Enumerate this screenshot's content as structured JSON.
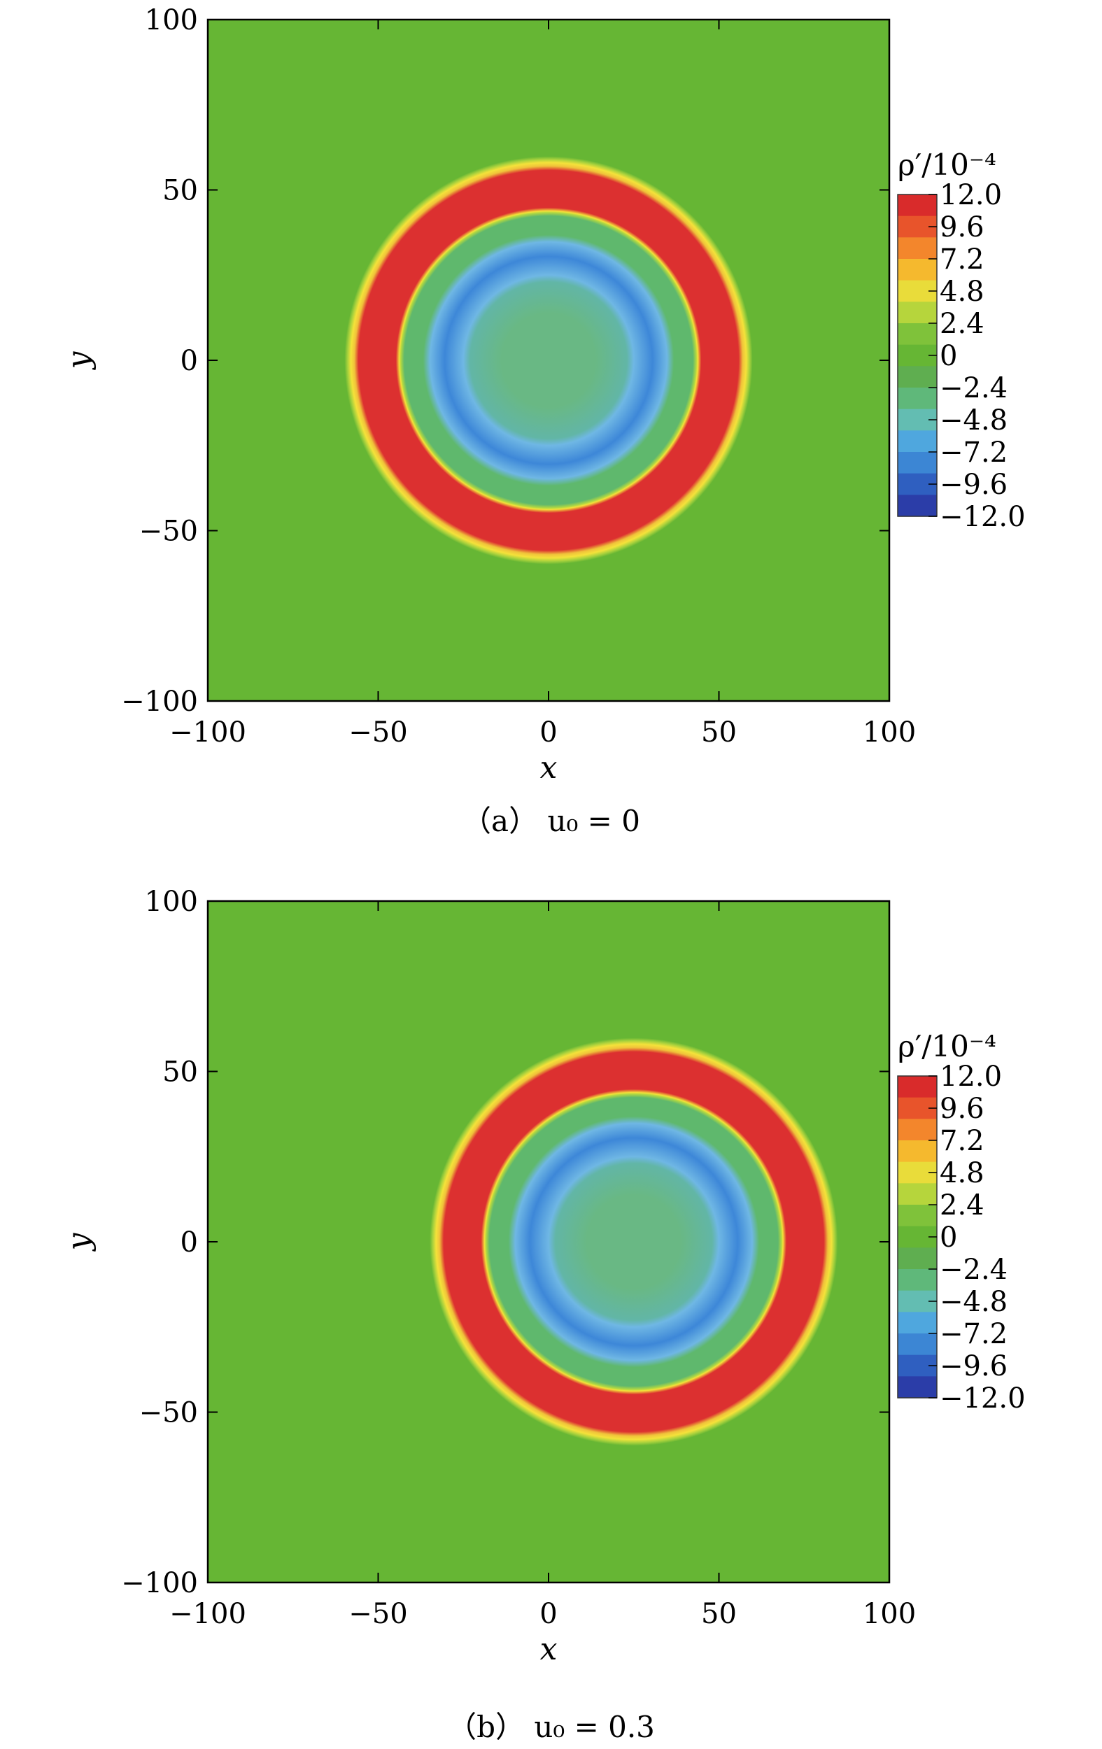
{
  "chart_data": [
    {
      "type": "heatmap",
      "caption": "（a） u₀ = 0",
      "xlabel": "x",
      "ylabel": "y",
      "xlim": [
        -100,
        100
      ],
      "ylim": [
        -100,
        100
      ],
      "xticks": [
        "−100",
        "−50",
        "0",
        "50",
        "100"
      ],
      "yticks": [
        "100",
        "50",
        "0",
        "−50",
        "−100"
      ],
      "grid": false,
      "colorbar": {
        "title": "ρ′/10⁻⁴",
        "range": [
          -12.0,
          12.0
        ],
        "labels": [
          "12.0",
          "9.6",
          "7.2",
          "4.8",
          "2.4",
          "0",
          "−2.4",
          "−4.8",
          "−7.2",
          "−9.6",
          "−12.0"
        ],
        "placement": "right"
      },
      "field": {
        "center": [
          0,
          0
        ],
        "rings": [
          {
            "inner_radius": 44,
            "outer_radius": 57,
            "value": 12.0
          },
          {
            "inner_radius": 25,
            "outer_radius": 36,
            "value": -8.5
          },
          {
            "inner_radius": 0,
            "outer_radius": 25,
            "value": -3.5
          }
        ],
        "background_value": 0
      }
    },
    {
      "type": "heatmap",
      "caption": "（b） u₀ = 0.3",
      "xlabel": "x",
      "ylabel": "y",
      "xlim": [
        -100,
        100
      ],
      "ylim": [
        -100,
        100
      ],
      "xticks": [
        "−100",
        "−50",
        "0",
        "50",
        "100"
      ],
      "yticks": [
        "100",
        "50",
        "0",
        "−50",
        "−100"
      ],
      "grid": false,
      "colorbar": {
        "title": "ρ′/10⁻⁴",
        "range": [
          -12.0,
          12.0
        ],
        "labels": [
          "12.0",
          "9.6",
          "7.2",
          "4.8",
          "2.4",
          "0",
          "−2.4",
          "−4.8",
          "−7.2",
          "−9.6",
          "−12.0"
        ],
        "placement": "right"
      },
      "field": {
        "center": [
          25,
          0
        ],
        "rings": [
          {
            "inner_radius": 44,
            "outer_radius": 57,
            "value": 12.0
          },
          {
            "inner_radius": 25,
            "outer_radius": 36,
            "value": -8.5
          },
          {
            "inner_radius": 0,
            "outer_radius": 25,
            "value": -3.5
          }
        ],
        "background_value": 0
      }
    }
  ],
  "colors": {
    "background_green": "#66b634",
    "ring_red": "#dc3030",
    "edge_yellow": "#f4e23a",
    "edge_green": "#b5d940",
    "inner_green": "#5fb86d",
    "blue_ring": "#3d87d8",
    "blue_light": "#6fb7e4",
    "center_green": "#69b884"
  }
}
